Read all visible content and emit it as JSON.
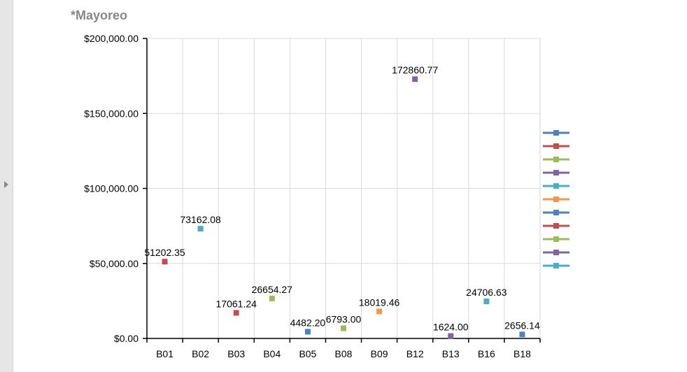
{
  "chart_data": {
    "type": "scatter",
    "title": "*Mayoreo",
    "categories": [
      "B01",
      "B02",
      "B03",
      "B04",
      "B05",
      "B08",
      "B09",
      "B12",
      "B13",
      "B16",
      "B18"
    ],
    "ylim": [
      0,
      200000
    ],
    "yticks": [
      "$0.00",
      "$50,000.00",
      "$100,000.00",
      "$150,000.00",
      "$200,000.00"
    ],
    "ytick_values": [
      0,
      50000,
      100000,
      150000,
      200000
    ],
    "grid": true,
    "legend_position": "right",
    "points": [
      {
        "category": "B01",
        "value": 51202.35,
        "label": "51202.35",
        "color": "#c0504d"
      },
      {
        "category": "B02",
        "value": 73162.08,
        "label": "73162.08",
        "color": "#4bacc6"
      },
      {
        "category": "B03",
        "value": 17061.24,
        "label": "17061.24",
        "color": "#c0504d"
      },
      {
        "category": "B04",
        "value": 26654.27,
        "label": "26654.27",
        "color": "#9bbb59"
      },
      {
        "category": "B05",
        "value": 4482.2,
        "label": "4482.20",
        "color": "#4f81bd"
      },
      {
        "category": "B08",
        "value": 6793.0,
        "label": "6793.00",
        "color": "#9bbb59"
      },
      {
        "category": "B09",
        "value": 18019.46,
        "label": "18019.46",
        "color": "#f79646"
      },
      {
        "category": "B12",
        "value": 172860.77,
        "label": "172860.77",
        "color": "#8064a2"
      },
      {
        "category": "B13",
        "value": 1624.0,
        "label": "1624.00",
        "color": "#8064a2"
      },
      {
        "category": "B16",
        "value": 24706.63,
        "label": "24706.63",
        "color": "#4bacc6"
      },
      {
        "category": "B18",
        "value": 2656.14,
        "label": "2656.14",
        "color": "#4f81bd"
      }
    ],
    "legend_colors": [
      "#4f81bd",
      "#c0504d",
      "#9bbb59",
      "#8064a2",
      "#4bacc6",
      "#f79646",
      "#4f81bd",
      "#c0504d",
      "#9bbb59",
      "#8064a2",
      "#4bacc6"
    ]
  }
}
